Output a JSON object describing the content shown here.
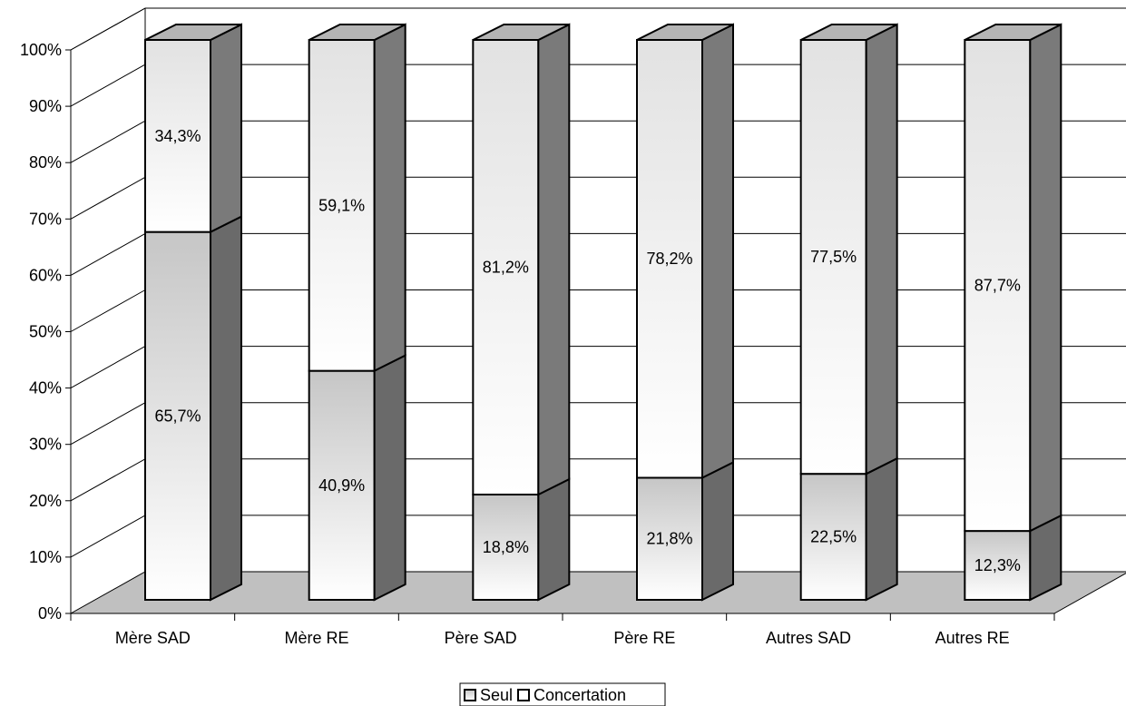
{
  "chart_data": {
    "type": "bar",
    "stacked": true,
    "three_d": true,
    "title": "",
    "xlabel": "",
    "ylabel": "",
    "ylim": [
      0,
      100
    ],
    "yticks": [
      "0%",
      "10%",
      "20%",
      "30%",
      "40%",
      "50%",
      "60%",
      "70%",
      "80%",
      "90%",
      "100%"
    ],
    "grid": true,
    "legend_position": "bottom",
    "categories": [
      "Mère SAD",
      "Mère RE",
      "Père SAD",
      "Père RE",
      "Autres SAD",
      "Autres RE"
    ],
    "series": [
      {
        "name": "Seul",
        "values": [
          65.7,
          40.9,
          18.8,
          21.8,
          22.5,
          12.3
        ],
        "labels": [
          "65,7%",
          "40,9%",
          "18,8%",
          "21,8%",
          "22,5%",
          "12,3%"
        ],
        "color": "#c8c8c8"
      },
      {
        "name": "Concertation",
        "values": [
          34.3,
          59.1,
          81.2,
          78.2,
          77.5,
          87.7
        ],
        "labels": [
          "34,3%",
          "59,1%",
          "81,2%",
          "78,2%",
          "77,5%",
          "87,7%"
        ],
        "color": "#ffffff"
      }
    ],
    "colors": {
      "floor": "#c0c0c0",
      "side": "#7a7a7a",
      "top": "#b4b4b4",
      "grid": "#000000"
    }
  }
}
